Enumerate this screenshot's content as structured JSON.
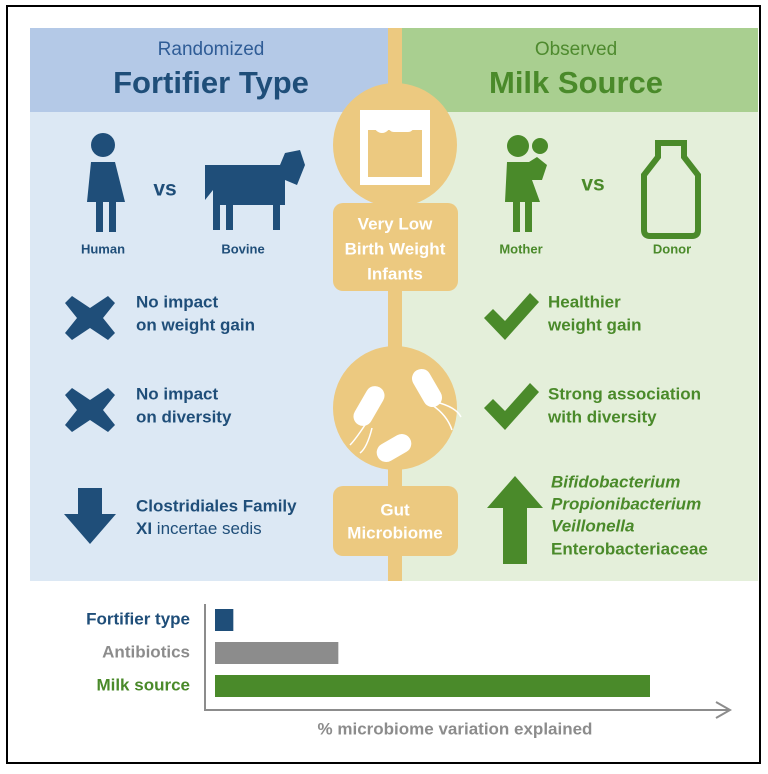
{
  "left": {
    "subtitle": "Randomized",
    "title": "Fortifier Type",
    "compare": [
      "Human",
      "vs",
      "Bovine"
    ],
    "findings": [
      [
        "No impact",
        "on weight gain"
      ],
      [
        "No impact",
        "on diversity"
      ]
    ],
    "taxon": {
      "line1": "Clostridiales Family",
      "line2_bold": "XI",
      "line2": "incertae sedis"
    }
  },
  "center": {
    "population": [
      "Very Low",
      "Birth Weight",
      "Infants"
    ],
    "outcome": [
      "Gut",
      "Microbiome"
    ]
  },
  "right": {
    "subtitle": "Observed",
    "title": "Milk Source",
    "compare": [
      "Mother",
      "vs",
      "Donor"
    ],
    "findings": [
      [
        "Healthier",
        "weight gain"
      ],
      [
        "Strong association",
        "with diversity"
      ]
    ],
    "taxa_italic": [
      "Bifidobacterium",
      "Propionibacterium",
      "Veillonella"
    ],
    "taxa": [
      "Enterobacteriaceae"
    ]
  },
  "chart_data": {
    "type": "bar",
    "orientation": "horizontal",
    "categories": [
      "Fortifier type",
      "Antibiotics",
      "Milk source"
    ],
    "colors": [
      "#1f4e79",
      "#8c8c8c",
      "#4a8a2a"
    ],
    "values": [
      1.1,
      7.4,
      26.1
    ],
    "xlim": [
      0,
      30
    ],
    "xlabel": "% microbiome variation explained"
  }
}
